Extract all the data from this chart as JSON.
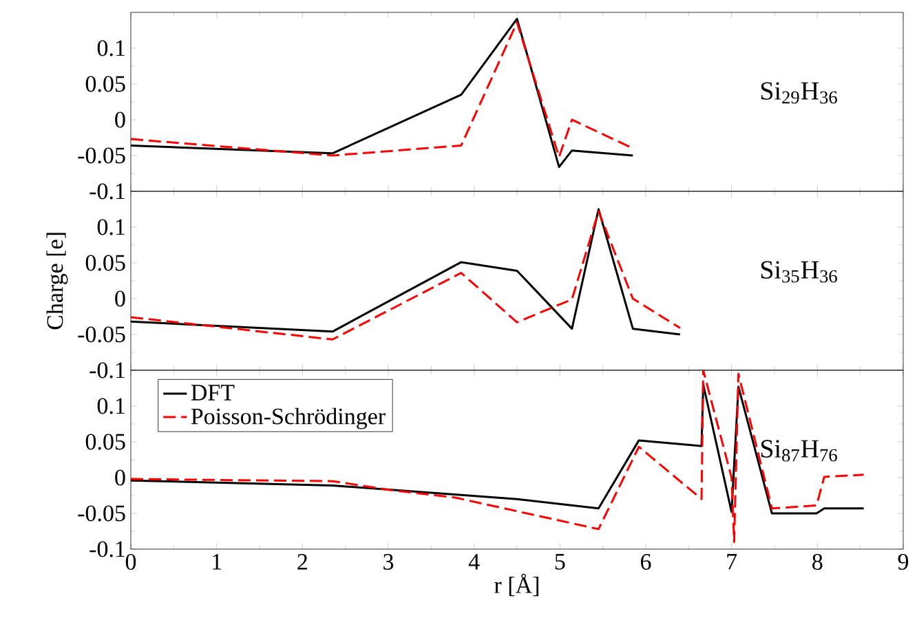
{
  "chart_data": [
    {
      "type": "line",
      "xlim": [
        0,
        9
      ],
      "xticks": [
        0,
        1,
        2,
        3,
        4,
        5,
        6,
        7,
        8,
        9
      ],
      "ylim": [
        -0.1,
        0.15
      ],
      "yticks": [
        -0.1,
        -0.05,
        0,
        0.05,
        0.1
      ],
      "tick_labels": "y",
      "annotations": [
        "Si$_{29}$H$_{36}$"
      ],
      "series": [
        {
          "color": "#000000",
          "line_style": "solid",
          "x": [
            0,
            2.35,
            3.85,
            4.5,
            4.99,
            5.14,
            5.85
          ],
          "values": [
            -0.036,
            -0.047,
            0.035,
            0.141,
            -0.066,
            -0.043,
            -0.05
          ]
        },
        {
          "color": "#ff0000",
          "line_style": "dashed",
          "x": [
            0,
            2.35,
            3.85,
            4.5,
            4.99,
            5.14,
            5.85
          ],
          "values": [
            -0.027,
            -0.05,
            -0.036,
            0.136,
            -0.052,
            0.0,
            -0.04
          ]
        }
      ]
    },
    {
      "type": "line",
      "ylabel": "Charge [e]",
      "xlim": [
        0,
        9
      ],
      "xticks": [
        0,
        1,
        2,
        3,
        4,
        5,
        6,
        7,
        8,
        9
      ],
      "ylim": [
        -0.1,
        0.15
      ],
      "yticks": [
        -0.1,
        -0.05,
        0,
        0.05,
        0.1
      ],
      "tick_labels": "y",
      "annotations": [
        "Si$_{35}$H$_{36}$"
      ],
      "series": [
        {
          "color": "#000000",
          "line_style": "solid",
          "x": [
            0,
            2.35,
            3.85,
            4.5,
            5.14,
            5.45,
            5.85,
            6.4
          ],
          "values": [
            -0.032,
            -0.046,
            0.051,
            0.039,
            -0.042,
            0.125,
            -0.042,
            -0.05
          ]
        },
        {
          "color": "#ff0000",
          "line_style": "dashed",
          "x": [
            0,
            2.35,
            3.85,
            4.5,
            5.14,
            5.45,
            5.85,
            6.4
          ],
          "values": [
            -0.026,
            -0.057,
            0.036,
            -0.033,
            -0.001,
            0.122,
            0.0,
            -0.041
          ]
        }
      ]
    },
    {
      "type": "line",
      "xlabel": "r [Å]",
      "xlim": [
        0,
        9
      ],
      "xticks": [
        0,
        1,
        2,
        3,
        4,
        5,
        6,
        7,
        8,
        9
      ],
      "ylim": [
        -0.1,
        0.15
      ],
      "yticks": [
        -0.1,
        -0.05,
        0,
        0.05,
        0.1
      ],
      "legend": "top left",
      "annotations": [
        "Si$_{87}$H$_{76}$"
      ],
      "series": [
        {
          "name": "DFT",
          "color": "#000000",
          "line_style": "solid",
          "x": [
            0,
            2.35,
            4.5,
            5.45,
            5.92,
            6.65,
            6.67,
            7.0,
            7.08,
            7.47,
            7.99,
            8.08,
            8.54
          ],
          "values": [
            -0.004,
            -0.011,
            -0.03,
            -0.043,
            0.052,
            0.044,
            0.13,
            -0.048,
            0.127,
            -0.05,
            -0.05,
            -0.043,
            -0.043
          ]
        },
        {
          "name": "Poisson-Schrödinger",
          "color": "#ff0000",
          "line_style": "dashed",
          "x": [
            0,
            2.35,
            3.0,
            3.78,
            5.45,
            5.92,
            6.65,
            6.67,
            7.0,
            7.03,
            7.08,
            7.47,
            7.99,
            8.08,
            8.54
          ],
          "values": [
            -0.002,
            -0.005,
            -0.017,
            -0.028,
            -0.072,
            0.043,
            -0.03,
            0.15,
            0.0,
            -0.09,
            0.145,
            -0.043,
            -0.039,
            0.001,
            0.004
          ]
        }
      ]
    }
  ]
}
